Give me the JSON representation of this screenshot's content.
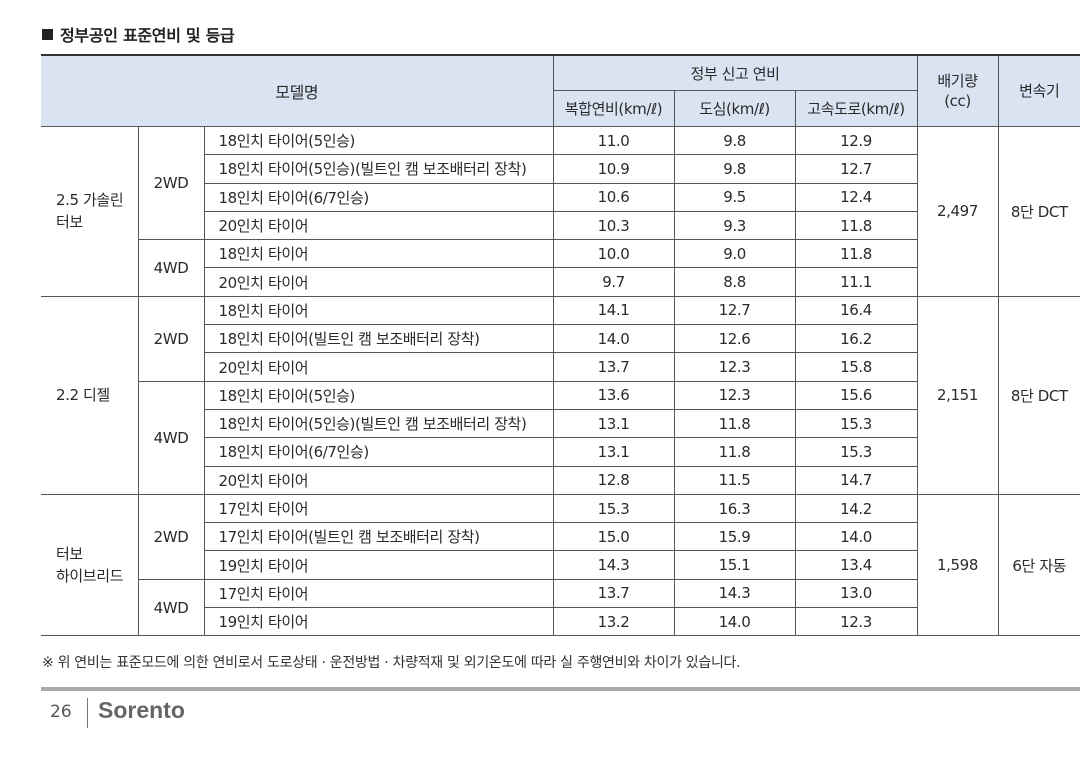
{
  "section_title": "정부공인 표준연비 및 등급",
  "header": {
    "model": "모델명",
    "gov_fuel": "정부 신고 연비",
    "combined": "복합연비(km/ℓ)",
    "city": "도심(km/ℓ)",
    "highway": "고속도로(km/ℓ)",
    "displacement_line1": "배기량",
    "displacement_line2": "(cc)",
    "transmission": "변속기"
  },
  "groups": [
    {
      "engine_line1": "2.5 가솔린",
      "engine_line2": "터보",
      "displacement": "2,497",
      "transmission": "8단 DCT",
      "drives": [
        {
          "drive": "2WD",
          "rows": [
            {
              "tire": "18인치 타이어(5인승)",
              "combined": "11.0",
              "city": "9.8",
              "highway": "12.9"
            },
            {
              "tire": "18인치 타이어(5인승)(빌트인 캠 보조배터리 장착)",
              "combined": "10.9",
              "city": "9.8",
              "highway": "12.7"
            },
            {
              "tire": "18인치 타이어(6/7인승)",
              "combined": "10.6",
              "city": "9.5",
              "highway": "12.4"
            },
            {
              "tire": "20인치 타이어",
              "combined": "10.3",
              "city": "9.3",
              "highway": "11.8"
            }
          ]
        },
        {
          "drive": "4WD",
          "rows": [
            {
              "tire": "18인치 타이어",
              "combined": "10.0",
              "city": "9.0",
              "highway": "11.8"
            },
            {
              "tire": "20인치 타이어",
              "combined": "9.7",
              "city": "8.8",
              "highway": "11.1"
            }
          ]
        }
      ]
    },
    {
      "engine_line1": "2.2 디젤",
      "engine_line2": "",
      "displacement": "2,151",
      "transmission": "8단 DCT",
      "drives": [
        {
          "drive": "2WD",
          "rows": [
            {
              "tire": "18인치 타이어",
              "combined": "14.1",
              "city": "12.7",
              "highway": "16.4"
            },
            {
              "tire": "18인치 타이어(빌트인 캠 보조배터리 장착)",
              "combined": "14.0",
              "city": "12.6",
              "highway": "16.2"
            },
            {
              "tire": "20인치 타이어",
              "combined": "13.7",
              "city": "12.3",
              "highway": "15.8"
            }
          ]
        },
        {
          "drive": "4WD",
          "rows": [
            {
              "tire": "18인치 타이어(5인승)",
              "combined": "13.6",
              "city": "12.3",
              "highway": "15.6"
            },
            {
              "tire": "18인치 타이어(5인승)(빌트인 캠 보조배터리 장착)",
              "combined": "13.1",
              "city": "11.8",
              "highway": "15.3"
            },
            {
              "tire": "18인치 타이어(6/7인승)",
              "combined": "13.1",
              "city": "11.8",
              "highway": "15.3"
            },
            {
              "tire": "20인치 타이어",
              "combined": "12.8",
              "city": "11.5",
              "highway": "14.7"
            }
          ]
        }
      ]
    },
    {
      "engine_line1": "터보",
      "engine_line2": "하이브리드",
      "displacement": "1,598",
      "transmission": "6단 자동",
      "drives": [
        {
          "drive": "2WD",
          "rows": [
            {
              "tire": "17인치 타이어",
              "combined": "15.3",
              "city": "16.3",
              "highway": "14.2"
            },
            {
              "tire": "17인치 타이어(빌트인 캠 보조배터리 장착)",
              "combined": "15.0",
              "city": "15.9",
              "highway": "14.0"
            },
            {
              "tire": "19인치 타이어",
              "combined": "14.3",
              "city": "15.1",
              "highway": "13.4"
            }
          ]
        },
        {
          "drive": "4WD",
          "rows": [
            {
              "tire": "17인치 타이어",
              "combined": "13.7",
              "city": "14.3",
              "highway": "13.0"
            },
            {
              "tire": "19인치 타이어",
              "combined": "13.2",
              "city": "14.0",
              "highway": "12.3"
            }
          ]
        }
      ]
    }
  ],
  "note": "※ 위 연비는 표준모드에 의한 연비로서 도로상태 · 운전방법 · 차량적재 및 외기온도에 따라 실 주행연비와 차이가 있습니다.",
  "footer": {
    "page_number": "26",
    "brand": "Sorento"
  }
}
